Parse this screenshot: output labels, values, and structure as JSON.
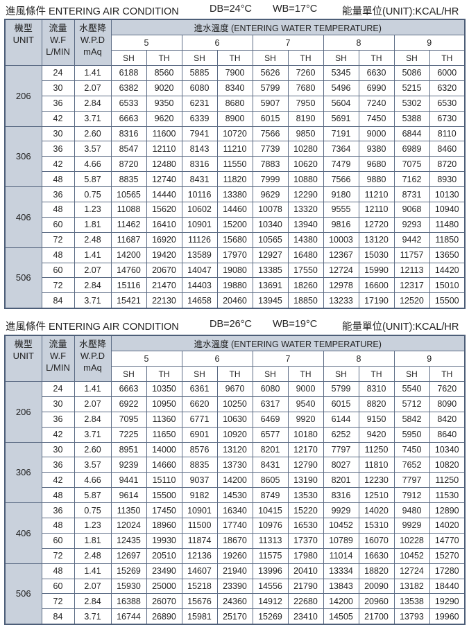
{
  "tables": [
    {
      "title": {
        "label": "進風條件  ENTERING AIR CONDITION",
        "db": "DB=24°C",
        "wb": "WB=17°C",
        "unit": "能量單位(UNIT):KCAL/HR"
      },
      "rows": [
        {
          "unit": "206",
          "data": [
            [
              "24",
              "1.41",
              "6188",
              "8560",
              "5885",
              "7900",
              "5626",
              "7260",
              "5345",
              "6630",
              "5086",
              "6000"
            ],
            [
              "30",
              "2.07",
              "6382",
              "9020",
              "6080",
              "8340",
              "5799",
              "7680",
              "5496",
              "6990",
              "5215",
              "6320"
            ],
            [
              "36",
              "2.84",
              "6533",
              "9350",
              "6231",
              "8680",
              "5907",
              "7950",
              "5604",
              "7240",
              "5302",
              "6530"
            ],
            [
              "42",
              "3.71",
              "6663",
              "9620",
              "6339",
              "8900",
              "6015",
              "8190",
              "5691",
              "7450",
              "5388",
              "6730"
            ]
          ]
        },
        {
          "unit": "306",
          "data": [
            [
              "30",
              "2.60",
              "8316",
              "11600",
              "7941",
              "10720",
              "7566",
              "9850",
              "7191",
              "9000",
              "6844",
              "8110"
            ],
            [
              "36",
              "3.57",
              "8547",
              "12110",
              "8143",
              "11210",
              "7739",
              "10280",
              "7364",
              "9380",
              "6989",
              "8460"
            ],
            [
              "42",
              "4.66",
              "8720",
              "12480",
              "8316",
              "11550",
              "7883",
              "10620",
              "7479",
              "9680",
              "7075",
              "8720"
            ],
            [
              "48",
              "5.87",
              "8835",
              "12740",
              "8431",
              "11820",
              "7999",
              "10880",
              "7566",
              "9880",
              "7162",
              "8930"
            ]
          ]
        },
        {
          "unit": "406",
          "data": [
            [
              "36",
              "0.75",
              "10565",
              "14440",
              "10116",
              "13380",
              "9629",
              "12290",
              "9180",
              "11210",
              "8731",
              "10130"
            ],
            [
              "48",
              "1.23",
              "11088",
              "15620",
              "10602",
              "14460",
              "10078",
              "13320",
              "9555",
              "12110",
              "9068",
              "10940"
            ],
            [
              "60",
              "1.81",
              "11462",
              "16410",
              "10901",
              "15200",
              "10340",
              "13940",
              "9816",
              "12720",
              "9293",
              "11480"
            ],
            [
              "72",
              "2.48",
              "11687",
              "16920",
              "11126",
              "15680",
              "10565",
              "14380",
              "10003",
              "13120",
              "9442",
              "11850"
            ]
          ]
        },
        {
          "unit": "506",
          "data": [
            [
              "48",
              "1.41",
              "14200",
              "19420",
              "13589",
              "17970",
              "12927",
              "16480",
              "12367",
              "15030",
              "11757",
              "13650"
            ],
            [
              "60",
              "2.07",
              "14760",
              "20670",
              "14047",
              "19080",
              "13385",
              "17550",
              "12724",
              "15990",
              "12113",
              "14420"
            ],
            [
              "72",
              "2.84",
              "15116",
              "21470",
              "14403",
              "19880",
              "13691",
              "18260",
              "12978",
              "16600",
              "12317",
              "15010"
            ],
            [
              "84",
              "3.71",
              "15421",
              "22130",
              "14658",
              "20460",
              "13945",
              "18850",
              "13233",
              "17190",
              "12520",
              "15500"
            ]
          ]
        }
      ]
    },
    {
      "title": {
        "label": "進風條件  ENTERING AIR CONDITION",
        "db": "DB=26°C",
        "wb": "WB=19°C",
        "unit": "能量單位(UNIT):KCAL/HR"
      },
      "rows": [
        {
          "unit": "206",
          "data": [
            [
              "24",
              "1.41",
              "6663",
              "10350",
              "6361",
              "9670",
              "6080",
              "9000",
              "5799",
              "8310",
              "5540",
              "7620"
            ],
            [
              "30",
              "2.07",
              "6922",
              "10950",
              "6620",
              "10250",
              "6317",
              "9540",
              "6015",
              "8820",
              "5712",
              "8090"
            ],
            [
              "36",
              "2.84",
              "7095",
              "11360",
              "6771",
              "10630",
              "6469",
              "9920",
              "6144",
              "9150",
              "5842",
              "8420"
            ],
            [
              "42",
              "3.71",
              "7225",
              "11650",
              "6901",
              "10920",
              "6577",
              "10180",
              "6252",
              "9420",
              "5950",
              "8640"
            ]
          ]
        },
        {
          "unit": "306",
          "data": [
            [
              "30",
              "2.60",
              "8951",
              "14000",
              "8576",
              "13120",
              "8201",
              "12170",
              "7797",
              "11250",
              "7450",
              "10340"
            ],
            [
              "36",
              "3.57",
              "9239",
              "14660",
              "8835",
              "13730",
              "8431",
              "12790",
              "8027",
              "11810",
              "7652",
              "10820"
            ],
            [
              "42",
              "4.66",
              "9441",
              "15110",
              "9037",
              "14200",
              "8605",
              "13190",
              "8201",
              "12230",
              "7797",
              "11250"
            ],
            [
              "48",
              "5.87",
              "9614",
              "15500",
              "9182",
              "14530",
              "8749",
              "13530",
              "8316",
              "12510",
              "7912",
              "11530"
            ]
          ]
        },
        {
          "unit": "406",
          "data": [
            [
              "36",
              "0.75",
              "11350",
              "17450",
              "10901",
              "16340",
              "10415",
              "15220",
              "9929",
              "14020",
              "9480",
              "12890"
            ],
            [
              "48",
              "1.23",
              "12024",
              "18960",
              "11500",
              "17740",
              "10976",
              "16530",
              "10452",
              "15310",
              "9929",
              "14020"
            ],
            [
              "60",
              "1.81",
              "12435",
              "19930",
              "11874",
              "18670",
              "11313",
              "17370",
              "10789",
              "16070",
              "10228",
              "14770"
            ],
            [
              "72",
              "2.48",
              "12697",
              "20510",
              "12136",
              "19260",
              "11575",
              "17980",
              "11014",
              "16630",
              "10452",
              "15270"
            ]
          ]
        },
        {
          "unit": "506",
          "data": [
            [
              "48",
              "1.41",
              "15269",
              "23490",
              "14607",
              "21940",
              "13996",
              "20410",
              "13334",
              "18820",
              "12724",
              "17280"
            ],
            [
              "60",
              "2.07",
              "15930",
              "25000",
              "15218",
              "23390",
              "14556",
              "21790",
              "13843",
              "20090",
              "13182",
              "18440"
            ],
            [
              "72",
              "2.84",
              "16388",
              "26070",
              "15676",
              "24360",
              "14912",
              "22680",
              "14200",
              "20960",
              "13538",
              "19290"
            ],
            [
              "84",
              "3.71",
              "16744",
              "26890",
              "15981",
              "25170",
              "15269",
              "23410",
              "14505",
              "21700",
              "13793",
              "19960"
            ]
          ]
        }
      ]
    }
  ],
  "header": {
    "unit": [
      "機型",
      "UNIT"
    ],
    "flow": [
      "流量",
      "W.F",
      "L/MIN"
    ],
    "wpd": [
      "水壓降",
      "W.P.D",
      "mAq"
    ],
    "ewt": "進水溫度 (ENTERING WATER TEMPERATURE)",
    "temps": [
      "5",
      "6",
      "7",
      "8",
      "9"
    ],
    "sh": "SH",
    "th": "TH"
  },
  "colors": {
    "header_bg": "#c9d1dc",
    "border": "#5b6b84"
  }
}
